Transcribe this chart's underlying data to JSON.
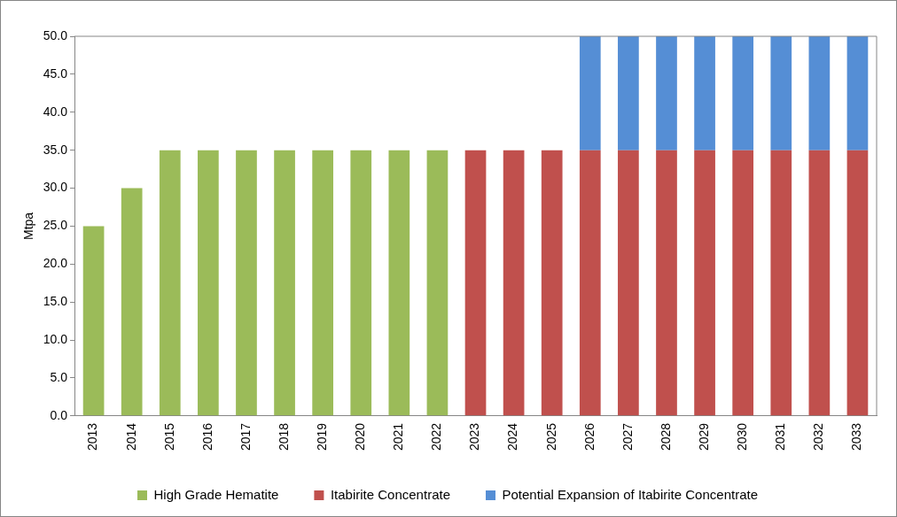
{
  "chart_data": {
    "type": "bar",
    "stacked": true,
    "ylabel": "Mtpa",
    "categories": [
      "2013",
      "2014",
      "2015",
      "2016",
      "2017",
      "2018",
      "2019",
      "2020",
      "2021",
      "2022",
      "2023",
      "2024",
      "2025",
      "2026",
      "2027",
      "2028",
      "2029",
      "2030",
      "2031",
      "2032",
      "2033"
    ],
    "series": [
      {
        "name": "High Grade Hematite",
        "color": "#9bbb59",
        "values": [
          25,
          30,
          35,
          35,
          35,
          35,
          35,
          35,
          35,
          35,
          null,
          null,
          null,
          null,
          null,
          null,
          null,
          null,
          null,
          null,
          null
        ]
      },
      {
        "name": "Itabirite Concentrate",
        "color": "#c0504d",
        "values": [
          null,
          null,
          null,
          null,
          null,
          null,
          null,
          null,
          null,
          null,
          35,
          35,
          35,
          35,
          35,
          35,
          35,
          35,
          35,
          35,
          35
        ]
      },
      {
        "name": "Potential Expansion of Itabirite Concentrate",
        "color": "#558ed5",
        "values": [
          null,
          null,
          null,
          null,
          null,
          null,
          null,
          null,
          null,
          null,
          null,
          null,
          null,
          15,
          15,
          15,
          15,
          15,
          15,
          15,
          15
        ]
      }
    ],
    "ylim": [
      0,
      50
    ],
    "yticks": [
      {
        "value": 0,
        "label": "0.0"
      },
      {
        "value": 5,
        "label": "5.0"
      },
      {
        "value": 10,
        "label": "10.0"
      },
      {
        "value": 15,
        "label": "15.0"
      },
      {
        "value": 20,
        "label": "20.0"
      },
      {
        "value": 25,
        "label": "25.0"
      },
      {
        "value": 30,
        "label": "30.0"
      },
      {
        "value": 35,
        "label": "35.0"
      },
      {
        "value": 40,
        "label": "40.0"
      },
      {
        "value": 45,
        "label": "45.0"
      },
      {
        "value": 50,
        "label": "50.0"
      }
    ],
    "grid": false,
    "legend": "bottom"
  }
}
